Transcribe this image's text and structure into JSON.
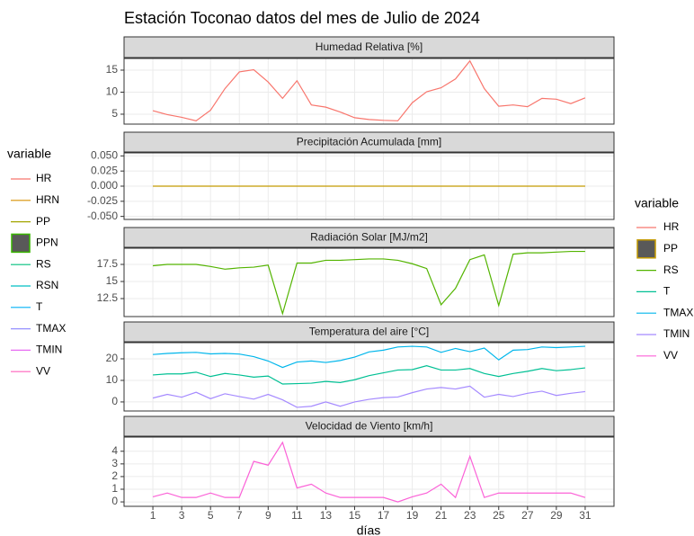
{
  "title": "Estación Toconao datos del mes de Julio de 2024",
  "xlabel": "días",
  "left_legend": {
    "title": "variable",
    "entries": [
      {
        "name": "HR",
        "color": "#F8766D"
      },
      {
        "name": "HRN",
        "color": "#D89000"
      },
      {
        "name": "PP",
        "color": "#A3A500"
      },
      {
        "name": "PPN",
        "color": "#39B600",
        "key": "fill"
      },
      {
        "name": "RS",
        "color": "#00BF7D"
      },
      {
        "name": "RSN",
        "color": "#00BFC4"
      },
      {
        "name": "T",
        "color": "#00B0F6"
      },
      {
        "name": "TMAX",
        "color": "#9590FF"
      },
      {
        "name": "TMIN",
        "color": "#E76BF3"
      },
      {
        "name": "VV",
        "color": "#FF62BC"
      }
    ]
  },
  "right_legend_title": "variable",
  "chart_data": [
    {
      "type": "line",
      "title": "Humedad Relativa [%]",
      "x": [
        1,
        2,
        3,
        4,
        5,
        6,
        7,
        8,
        9,
        10,
        11,
        12,
        13,
        14,
        15,
        16,
        17,
        18,
        19,
        20,
        21,
        22,
        23,
        24,
        25,
        26,
        27,
        28,
        29,
        30,
        31
      ],
      "xlim": [
        -1,
        33
      ],
      "xticks": [
        1,
        3,
        5,
        7,
        9,
        11,
        13,
        15,
        17,
        19,
        21,
        23,
        25,
        27,
        29,
        31
      ],
      "ylim": [
        2.75,
        17.65
      ],
      "yticks": [
        5,
        10,
        15
      ],
      "series": [
        {
          "name": "HR",
          "color": "#F8766D",
          "values": [
            5.8,
            4.9,
            4.3,
            3.5,
            5.9,
            10.8,
            14.6,
            15.1,
            12.3,
            8.6,
            12.6,
            7.1,
            6.6,
            5.5,
            4.2,
            3.8,
            3.6,
            3.5,
            7.6,
            10.1,
            11,
            13,
            17.1,
            10.8,
            6.8,
            7.1,
            6.7,
            8.6,
            8.4,
            7.4,
            8.7
          ]
        }
      ]
    },
    {
      "type": "line",
      "title": "Precipitación Acumulada [mm]",
      "x": [
        1,
        2,
        3,
        4,
        5,
        6,
        7,
        8,
        9,
        10,
        11,
        12,
        13,
        14,
        15,
        16,
        17,
        18,
        19,
        20,
        21,
        22,
        23,
        24,
        25,
        26,
        27,
        28,
        29,
        30,
        31
      ],
      "xlim": [
        -1,
        33
      ],
      "xticks": [
        1,
        3,
        5,
        7,
        9,
        11,
        13,
        15,
        17,
        19,
        21,
        23,
        25,
        27,
        29,
        31
      ],
      "ylim": [
        -0.055,
        0.055
      ],
      "yticks": [
        {
          "value": -0.05,
          "label": "-0.050"
        },
        {
          "value": -0.025,
          "label": "-0.025"
        },
        {
          "value": 0,
          "label": "0.000"
        },
        {
          "value": 0.025,
          "label": "0.025"
        },
        {
          "value": 0.05,
          "label": "0.050"
        }
      ],
      "series": [
        {
          "name": "PP",
          "color": "#C49A00",
          "key": "fill",
          "values": [
            0,
            0,
            0,
            0,
            0,
            0,
            0,
            0,
            0,
            0,
            0,
            0,
            0,
            0,
            0,
            0,
            0,
            0,
            0,
            0,
            0,
            0,
            0,
            0,
            0,
            0,
            0,
            0,
            0,
            0,
            0
          ]
        }
      ]
    },
    {
      "type": "line",
      "title": "Radiación Solar [MJ/m2]",
      "x": [
        1,
        2,
        3,
        4,
        5,
        6,
        7,
        8,
        9,
        10,
        11,
        12,
        13,
        14,
        15,
        16,
        17,
        18,
        19,
        20,
        21,
        22,
        23,
        24,
        25,
        26,
        27,
        28,
        29,
        30,
        31
      ],
      "xlim": [
        -1,
        33
      ],
      "xticks": [
        1,
        3,
        5,
        7,
        9,
        11,
        13,
        15,
        17,
        19,
        21,
        23,
        25,
        27,
        29,
        31
      ],
      "ylim": [
        9.87,
        19.87
      ],
      "yticks": [
        12.5,
        15,
        17.5
      ],
      "series": [
        {
          "name": "RS",
          "color": "#53B400",
          "values": [
            17.3,
            17.5,
            17.5,
            17.5,
            17.2,
            16.8,
            17,
            17.1,
            17.4,
            10.3,
            17.7,
            17.7,
            18.1,
            18.1,
            18.2,
            18.3,
            18.3,
            18.1,
            17.6,
            16.9,
            11.6,
            14,
            18.2,
            18.9,
            11.5,
            19,
            19.2,
            19.2,
            19.3,
            19.4,
            19.4
          ]
        }
      ]
    },
    {
      "type": "line",
      "title": "Temperatura del aire [°C]",
      "x": [
        1,
        2,
        3,
        4,
        5,
        6,
        7,
        8,
        9,
        10,
        11,
        12,
        13,
        14,
        15,
        16,
        17,
        18,
        19,
        20,
        21,
        22,
        23,
        24,
        25,
        26,
        27,
        28,
        29,
        30,
        31
      ],
      "xlim": [
        -1,
        33
      ],
      "xticks": [
        1,
        3,
        5,
        7,
        9,
        11,
        13,
        15,
        17,
        19,
        21,
        23,
        25,
        27,
        29,
        31
      ],
      "ylim": [
        -4.2,
        27.5
      ],
      "yticks": [
        0,
        10,
        20
      ],
      "series": [
        {
          "name": "T",
          "color": "#00C094",
          "values": [
            12.5,
            13,
            13,
            13.8,
            11.8,
            13.2,
            12.5,
            11.5,
            12,
            8.3,
            8.5,
            8.7,
            9.5,
            9,
            10.3,
            12.2,
            13.5,
            14.8,
            15,
            16.8,
            14.8,
            14.8,
            15.5,
            13.2,
            11.8,
            13.2,
            14.2,
            15.5,
            14.5,
            15,
            15.8
          ]
        },
        {
          "name": "TMAX",
          "color": "#00B6EB",
          "values": [
            22,
            22.5,
            22.8,
            23,
            22.3,
            22.5,
            22.2,
            21,
            19,
            16,
            18.5,
            19,
            18.3,
            19.2,
            20.8,
            23.2,
            24,
            25.5,
            25.8,
            25.5,
            23,
            24.8,
            23.3,
            25,
            19.5,
            24,
            24.3,
            25.5,
            25.2,
            25.5,
            25.8
          ]
        },
        {
          "name": "TMIN",
          "color": "#A58AFF",
          "values": [
            1.8,
            3.5,
            2.2,
            4.5,
            1.5,
            3.8,
            2.5,
            1.3,
            3.5,
            1,
            -2.5,
            -2,
            0,
            -2,
            0,
            1.2,
            2,
            2.3,
            4.3,
            6,
            6.7,
            6,
            7.3,
            2.2,
            3.5,
            2.5,
            4,
            5,
            3,
            4,
            4.8
          ]
        }
      ]
    },
    {
      "type": "line",
      "title": "Velocidad de Viento [km/h]",
      "x": [
        1,
        2,
        3,
        4,
        5,
        6,
        7,
        8,
        9,
        10,
        11,
        12,
        13,
        14,
        15,
        16,
        17,
        18,
        19,
        20,
        21,
        22,
        23,
        24,
        25,
        26,
        27,
        28,
        29,
        30,
        31
      ],
      "xlim": [
        -1,
        33
      ],
      "xticks": [
        1,
        3,
        5,
        7,
        9,
        11,
        13,
        15,
        17,
        19,
        21,
        23,
        25,
        27,
        29,
        31
      ],
      "ylim": [
        -0.35,
        5.12
      ],
      "yticks": [
        0,
        1,
        2,
        3,
        4
      ],
      "series": [
        {
          "name": "VV",
          "color": "#FB61D7",
          "values": [
            0.4,
            0.7,
            0.35,
            0.35,
            0.7,
            0.35,
            0.35,
            3.2,
            2.9,
            4.7,
            1.1,
            1.4,
            0.7,
            0.35,
            0.35,
            0.35,
            0.35,
            0,
            0.4,
            0.7,
            1.4,
            0.35,
            3.6,
            0.35,
            0.7,
            0.7,
            0.7,
            0.7,
            0.7,
            0.7,
            0.35
          ]
        }
      ]
    }
  ]
}
